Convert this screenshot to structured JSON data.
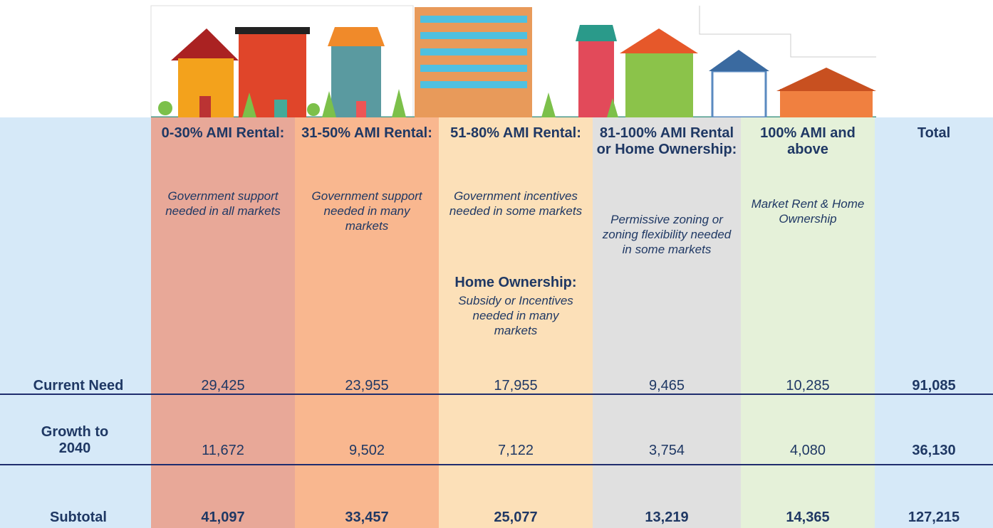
{
  "columns": [
    {
      "heading": "0-30% AMI Rental:",
      "note": "Government support needed in all markets"
    },
    {
      "heading": "31-50% AMI Rental:",
      "note": "Government support needed in many markets"
    },
    {
      "heading": "51-80% AMI Rental:",
      "note": "Government incentives needed in some markets",
      "extra_heading": "Home Ownership:",
      "extra_note": "Subsidy or Incentives needed in many markets"
    },
    {
      "heading": "81-100% AMI Rental or Home Ownership:",
      "note": "Permissive zoning or zoning flexibility needed in some markets"
    },
    {
      "heading": "100% AMI and above",
      "note": "Market Rent & Home Ownership"
    }
  ],
  "total_heading": "Total",
  "rows": [
    {
      "label": "Current Need",
      "values": [
        "29,425",
        "23,955",
        "17,955",
        "9,465",
        "10,285"
      ],
      "total": "91,085"
    },
    {
      "label": "Growth to 2040",
      "values": [
        "11,672",
        "9,502",
        "7,122",
        "3,754",
        "4,080"
      ],
      "total": "36,130"
    },
    {
      "label": "Subtotal",
      "values": [
        "41,097",
        "33,457",
        "25,077",
        "13,219",
        "14,365"
      ],
      "total": "127,215"
    }
  ]
}
